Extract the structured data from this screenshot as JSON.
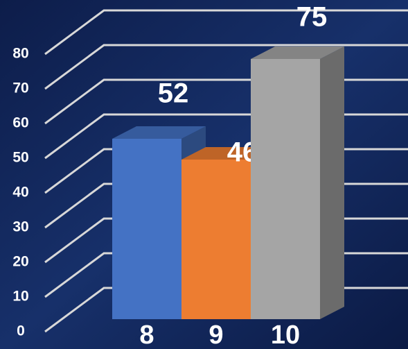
{
  "chart_data": {
    "type": "bar3d",
    "categories": [
      "8",
      "9",
      "10"
    ],
    "series": [
      {
        "values": [
          52,
          46,
          75
        ],
        "colors": [
          "#4472c4",
          "#ed7d31",
          "#a5a5a5"
        ]
      }
    ],
    "ylim": [
      0,
      80
    ],
    "yticks": [
      0,
      10,
      20,
      30,
      40,
      50,
      60,
      70,
      80
    ],
    "grid": true
  }
}
